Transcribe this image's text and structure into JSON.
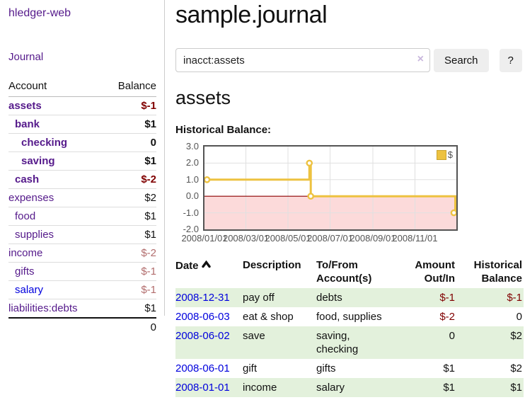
{
  "colors": {
    "link": "#0000dd",
    "link_visited": "#551a8b",
    "negative_strong": "#800000",
    "negative_soft": "#b26d6d",
    "row_stripe": "#e3f1dc",
    "button_bg": "#eeeeee",
    "input_border": "#cccccc",
    "clear_icon": "#c9b7dd",
    "chart_line": "#edc240",
    "chart_negative_region": "#fcdada",
    "chart_zero_line": "#8b0000",
    "chart_grid": "#e0e0e0",
    "chart_border": "#545454",
    "axis_text": "#545454"
  },
  "app": {
    "brand": "hledger-web"
  },
  "sidebar": {
    "nav_journal": "Journal",
    "accounts_header": {
      "account": "Account",
      "balance": "Balance"
    },
    "accounts": [
      {
        "name": "assets",
        "balance": "$-1",
        "indent": 0,
        "bold": true,
        "neg": "strong"
      },
      {
        "name": "bank",
        "balance": "$1",
        "indent": 1,
        "bold": true,
        "neg": "none"
      },
      {
        "name": "checking",
        "balance": "0",
        "indent": 2,
        "bold": true,
        "neg": "none"
      },
      {
        "name": "saving",
        "balance": "$1",
        "indent": 2,
        "bold": true,
        "neg": "none"
      },
      {
        "name": "cash",
        "balance": "$-2",
        "indent": 1,
        "bold": true,
        "neg": "strong"
      },
      {
        "name": "expenses",
        "balance": "$2",
        "indent": 0,
        "bold": false,
        "neg": "none"
      },
      {
        "name": "food",
        "balance": "$1",
        "indent": 1,
        "bold": false,
        "neg": "none"
      },
      {
        "name": "supplies",
        "balance": "$1",
        "indent": 1,
        "bold": false,
        "neg": "none"
      },
      {
        "name": "income",
        "balance": "$-2",
        "indent": 0,
        "bold": false,
        "neg": "soft"
      },
      {
        "name": "gifts",
        "balance": "$-1",
        "indent": 1,
        "bold": false,
        "neg": "soft"
      },
      {
        "name": "salary",
        "balance": "$-1",
        "indent": 1,
        "bold": false,
        "neg": "soft",
        "unvisited": true
      },
      {
        "name": "liabilities:debts",
        "balance": "$1",
        "indent": 0,
        "bold": false,
        "neg": "none"
      }
    ],
    "total": "0"
  },
  "header": {
    "title": "sample.journal"
  },
  "search": {
    "value": "inacct:assets",
    "clear_icon": "×",
    "button_label": "Search",
    "help_label": "?"
  },
  "account_page": {
    "title": "assets",
    "chart_label": "Historical Balance:"
  },
  "chart_data": {
    "type": "line",
    "title": "Historical Balance",
    "step": true,
    "series": [
      {
        "name": "$",
        "points": [
          [
            "2008-01-01",
            1
          ],
          [
            "2008-06-01",
            2
          ],
          [
            "2008-06-03",
            0
          ],
          [
            "2008-12-31",
            -1
          ]
        ]
      }
    ],
    "x_range": [
      "2008-01-01",
      "2008-12-31"
    ],
    "x_tick_labels": [
      "2008/01/01",
      "2008/03/01",
      "2008/05/01",
      "2008/07/01",
      "2008/09/01",
      "2008/11/01"
    ],
    "ylim": [
      -2,
      3
    ],
    "ytick_values": [
      3,
      2,
      1,
      0,
      -1,
      -2
    ],
    "ytick_labels": [
      "3.0",
      "2.0",
      "1.0",
      "0.0",
      "-1.0",
      "-2.0"
    ],
    "grid": true,
    "legend_position": "top-right",
    "negative_region_shaded": true
  },
  "register": {
    "columns": [
      "Date",
      "Description",
      "To/From Account(s)",
      "Amount Out/In",
      "Historical Balance"
    ],
    "sort": {
      "column": "Date",
      "direction": "asc"
    },
    "rows": [
      {
        "date": "2008-12-31",
        "description": "pay off",
        "accounts": "debts",
        "amount": "$-1",
        "balance": "$-1",
        "amount_negative": true,
        "balance_negative": true
      },
      {
        "date": "2008-06-03",
        "description": "eat & shop",
        "accounts": "food, supplies",
        "amount": "$-2",
        "balance": "0",
        "amount_negative": true,
        "balance_negative": false
      },
      {
        "date": "2008-06-02",
        "description": "save",
        "accounts": "saving, checking",
        "amount": "0",
        "balance": "$2",
        "amount_negative": false,
        "balance_negative": false
      },
      {
        "date": "2008-06-01",
        "description": "gift",
        "accounts": "gifts",
        "amount": "$1",
        "balance": "$2",
        "amount_negative": false,
        "balance_negative": false
      },
      {
        "date": "2008-01-01",
        "description": "income",
        "accounts": "salary",
        "amount": "$1",
        "balance": "$1",
        "amount_negative": false,
        "balance_negative": false
      }
    ]
  }
}
